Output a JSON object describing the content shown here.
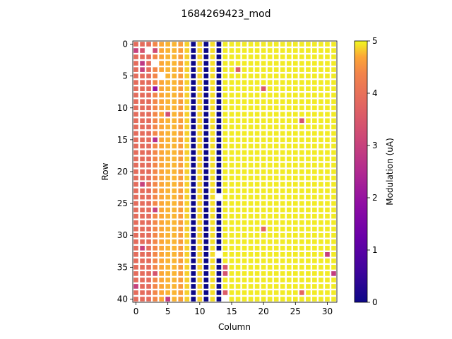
{
  "chart_data": {
    "type": "heatmap",
    "title": "1684269423_mod",
    "xlabel": "Column",
    "ylabel": "Row",
    "n_rows": 41,
    "n_cols": 32,
    "xticks": [
      0,
      5,
      10,
      15,
      20,
      25,
      30
    ],
    "yticks": [
      0,
      5,
      10,
      15,
      20,
      25,
      30,
      35,
      40
    ],
    "colormap": "plasma",
    "colorbar": {
      "label": "Modulation (uA)",
      "range": [
        0,
        5
      ],
      "ticks": [
        0,
        1,
        2,
        3,
        4,
        5
      ]
    },
    "column_profile": [
      3.9,
      3.9,
      3.9,
      4.4,
      4.7,
      4.75,
      4.75,
      4.6,
      4.85,
      0,
      4.85,
      0,
      4.9,
      0,
      4.95,
      4.95,
      4.95,
      4.95,
      4.95,
      4.95,
      4.95,
      4.95,
      4.95,
      4.95,
      4.95,
      4.95,
      4.95,
      4.95,
      4.95,
      4.95,
      4.95,
      4.95
    ],
    "outliers": [
      {
        "row": 1,
        "col": 0,
        "value": 3.0
      },
      {
        "row": 1,
        "col": 1,
        "value": 3.4
      },
      {
        "row": 1,
        "col": 3,
        "value": 3.2
      },
      {
        "row": 3,
        "col": 1,
        "value": 2.8
      },
      {
        "row": 4,
        "col": 1,
        "value": 3.0
      },
      {
        "row": 4,
        "col": 16,
        "value": 3.6
      },
      {
        "row": 7,
        "col": 3,
        "value": 2.0
      },
      {
        "row": 7,
        "col": 20,
        "value": 3.5
      },
      {
        "row": 11,
        "col": 5,
        "value": 3.3
      },
      {
        "row": 12,
        "col": 26,
        "value": 3.4
      },
      {
        "row": 15,
        "col": 3,
        "value": 2.6
      },
      {
        "row": 22,
        "col": 1,
        "value": 3.0
      },
      {
        "row": 26,
        "col": 3,
        "value": 3.0
      },
      {
        "row": 29,
        "col": 20,
        "value": 3.8
      },
      {
        "row": 32,
        "col": 1,
        "value": 3.0
      },
      {
        "row": 33,
        "col": 30,
        "value": 3.0
      },
      {
        "row": 35,
        "col": 14,
        "value": 3.5
      },
      {
        "row": 36,
        "col": 3,
        "value": 3.4
      },
      {
        "row": 36,
        "col": 14,
        "value": 3.4
      },
      {
        "row": 36,
        "col": 31,
        "value": 2.9
      },
      {
        "row": 38,
        "col": 0,
        "value": 3.0
      },
      {
        "row": 39,
        "col": 14,
        "value": 3.6
      },
      {
        "row": 39,
        "col": 26,
        "value": 3.8
      },
      {
        "row": 40,
        "col": 5,
        "value": 2.9
      }
    ],
    "missing_cells": [
      {
        "row": 1,
        "col": 2
      },
      {
        "row": 3,
        "col": 3
      },
      {
        "row": 5,
        "col": 4
      },
      {
        "row": 24,
        "col": 13
      },
      {
        "row": 33,
        "col": 13
      },
      {
        "row": 40,
        "col": 14
      }
    ]
  }
}
